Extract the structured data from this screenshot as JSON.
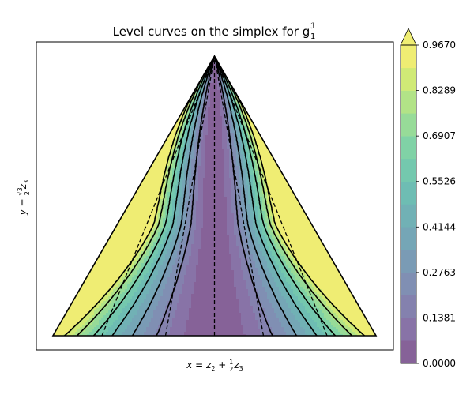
{
  "chart_data": {
    "type": "contour",
    "title": "Level curves on the simplex for g",
    "title_sub": "1",
    "title_sup": "ℐ",
    "xlabel": "x = z",
    "xlabel_parts": [
      "x = z",
      "2",
      " + ",
      "1",
      "2",
      "z",
      "3"
    ],
    "ylabel_parts": [
      "y = ",
      "√3",
      "2",
      "z",
      "3"
    ],
    "colorbar": {
      "label_ticks": [
        "0.0000",
        "0.1381",
        "0.2763",
        "0.4144",
        "0.5526",
        "0.6907",
        "0.8289",
        "0.9670"
      ],
      "levels": [
        0.0,
        0.069,
        0.1381,
        0.2072,
        0.2763,
        0.3453,
        0.4144,
        0.4835,
        0.5526,
        0.6216,
        0.6907,
        0.7598,
        0.8289,
        0.8979,
        0.967
      ],
      "extend": "max",
      "colormap": "viridis",
      "alpha": 0.65
    },
    "simplex_vertices": [
      [
        0,
        0
      ],
      [
        1,
        0
      ],
      [
        0.5,
        0.866
      ]
    ],
    "dashed_lines": [
      [
        0.1515,
        0.5
      ],
      [
        0.3485,
        0.5
      ],
      [
        0.5,
        0.5
      ],
      [
        0.6515,
        0.5
      ],
      [
        0.8485,
        0.5
      ]
    ],
    "black_level_lines": true,
    "grid": false
  }
}
